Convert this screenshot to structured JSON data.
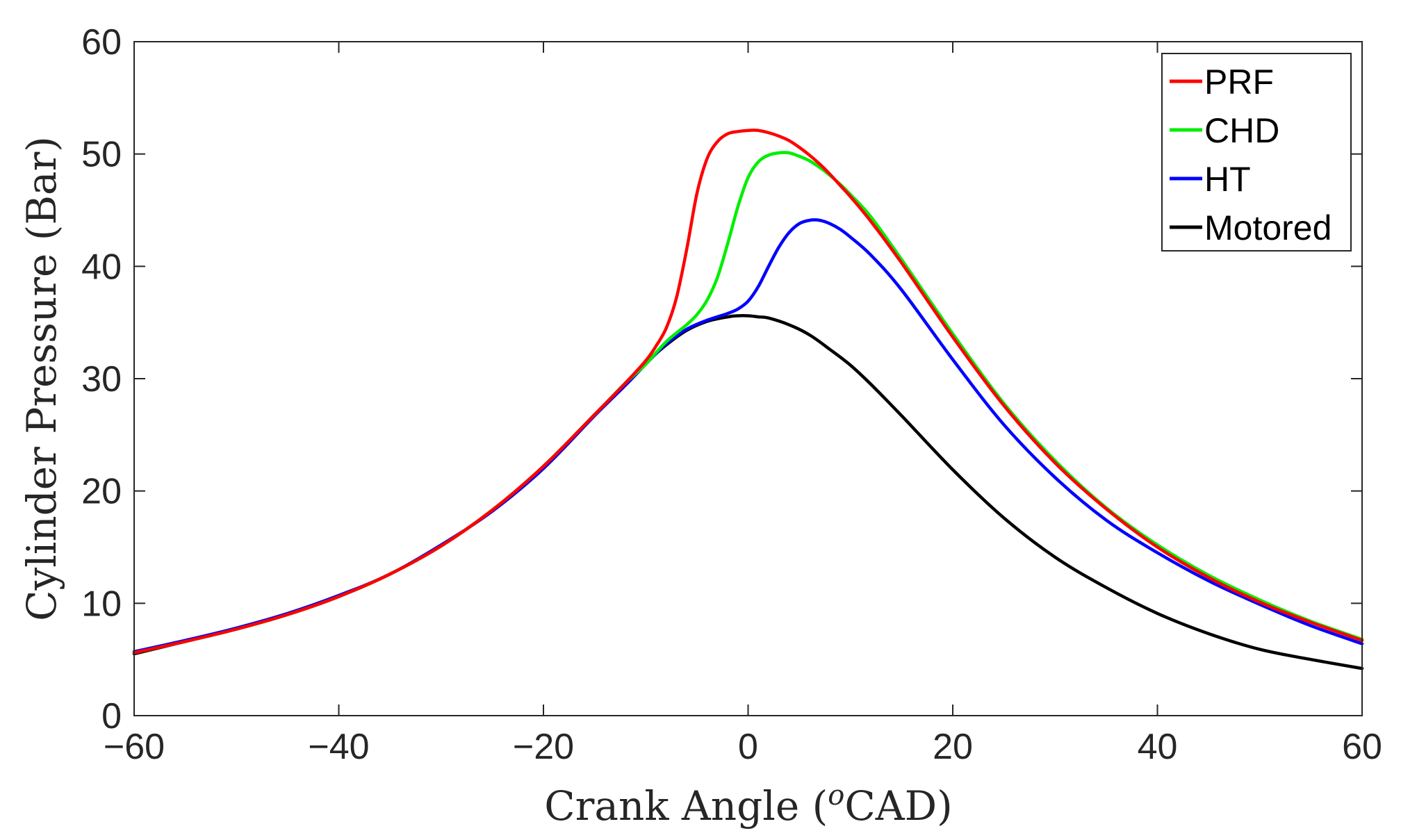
{
  "chart_data": {
    "type": "line",
    "title": "",
    "xlabel": "Crank Angle (",
    "xlabel_sup": "o",
    "xlabel_tail": "CAD)",
    "ylabel": "Cylinder Pressure (Bar)",
    "xlim": [
      -60,
      60
    ],
    "ylim": [
      0,
      60
    ],
    "xticks": [
      -60,
      -40,
      -20,
      0,
      20,
      40,
      60
    ],
    "xtick_labels": [
      "−60",
      "−40",
      "−20",
      "0",
      "20",
      "40",
      "60"
    ],
    "yticks": [
      0,
      10,
      20,
      30,
      40,
      50,
      60
    ],
    "ytick_labels": [
      "0",
      "10",
      "20",
      "30",
      "40",
      "50",
      "60"
    ],
    "grid": false,
    "legend_position": "top-right",
    "series": [
      {
        "name": "PRF",
        "color": "#ff0000",
        "x": [
          -60,
          -55,
          -50,
          -45,
          -40,
          -35,
          -30,
          -25,
          -20,
          -15,
          -12,
          -10,
          -9,
          -8,
          -7,
          -6,
          -5,
          -4,
          -3,
          -2,
          -1,
          0,
          1,
          2,
          3,
          4,
          5,
          6,
          7,
          8,
          9,
          10,
          12,
          15,
          20,
          25,
          30,
          35,
          40,
          45,
          50,
          55,
          60
        ],
        "y": [
          5.6,
          6.6,
          7.7,
          9.0,
          10.6,
          12.6,
          15.1,
          18.3,
          22.2,
          26.8,
          29.6,
          31.6,
          32.9,
          34.5,
          37.2,
          41.5,
          46.5,
          49.6,
          51.1,
          51.8,
          52.0,
          52.1,
          52.1,
          51.9,
          51.6,
          51.2,
          50.6,
          49.9,
          49.1,
          48.2,
          47.2,
          46.2,
          44.0,
          40.3,
          33.7,
          27.6,
          22.5,
          18.4,
          15.0,
          12.3,
          10.1,
          8.3,
          6.7
        ]
      },
      {
        "name": "CHD",
        "color": "#00ee00",
        "x": [
          -60,
          -55,
          -50,
          -45,
          -40,
          -35,
          -30,
          -25,
          -20,
          -15,
          -12,
          -10,
          -8,
          -6,
          -5,
          -4,
          -3,
          -2,
          -1,
          0,
          1,
          2,
          3,
          4,
          5,
          6,
          7,
          8,
          9,
          10,
          12,
          15,
          20,
          25,
          30,
          35,
          40,
          45,
          50,
          55,
          60
        ],
        "y": [
          5.6,
          6.6,
          7.7,
          9.0,
          10.6,
          12.6,
          15.1,
          18.3,
          22.2,
          26.8,
          29.6,
          31.3,
          33.3,
          34.8,
          35.7,
          37.0,
          39.0,
          42.0,
          45.3,
          47.9,
          49.3,
          49.9,
          50.1,
          50.1,
          49.8,
          49.4,
          48.8,
          48.1,
          47.3,
          46.4,
          44.4,
          40.6,
          34.0,
          27.8,
          22.7,
          18.5,
          15.2,
          12.5,
          10.3,
          8.4,
          6.8
        ]
      },
      {
        "name": "HT",
        "color": "#0000ff",
        "x": [
          -60,
          -55,
          -50,
          -45,
          -40,
          -35,
          -30,
          -25,
          -20,
          -15,
          -12,
          -10,
          -8,
          -6,
          -4,
          -2,
          -1,
          0,
          1,
          2,
          3,
          4,
          5,
          6,
          7,
          8,
          9,
          10,
          12,
          15,
          20,
          25,
          30,
          35,
          40,
          45,
          50,
          55,
          60
        ],
        "y": [
          5.7,
          6.7,
          7.8,
          9.1,
          10.7,
          12.6,
          15.2,
          18.2,
          22.0,
          26.7,
          29.4,
          31.3,
          33.1,
          34.4,
          35.2,
          35.8,
          36.2,
          36.9,
          38.2,
          40.0,
          41.7,
          43.0,
          43.8,
          44.1,
          44.1,
          43.8,
          43.3,
          42.6,
          41.0,
          37.9,
          31.7,
          25.9,
          21.2,
          17.4,
          14.5,
          12.0,
          9.9,
          8.0,
          6.4
        ]
      },
      {
        "name": "Motored",
        "color": "#000000",
        "x": [
          -60,
          -55,
          -50,
          -45,
          -40,
          -35,
          -30,
          -25,
          -20,
          -15,
          -12,
          -10,
          -8,
          -6,
          -4,
          -2,
          -1,
          0,
          1,
          2,
          4,
          6,
          8,
          10,
          12,
          15,
          20,
          25,
          30,
          35,
          40,
          45,
          50,
          55,
          60
        ],
        "y": [
          5.5,
          6.6,
          7.7,
          9.0,
          10.6,
          12.6,
          15.1,
          18.3,
          22.2,
          26.8,
          29.6,
          31.4,
          33.0,
          34.3,
          35.1,
          35.5,
          35.6,
          35.6,
          35.5,
          35.4,
          34.8,
          33.9,
          32.6,
          31.2,
          29.5,
          26.7,
          21.9,
          17.6,
          14.1,
          11.4,
          9.1,
          7.3,
          5.9,
          5.0,
          4.2
        ]
      }
    ]
  }
}
